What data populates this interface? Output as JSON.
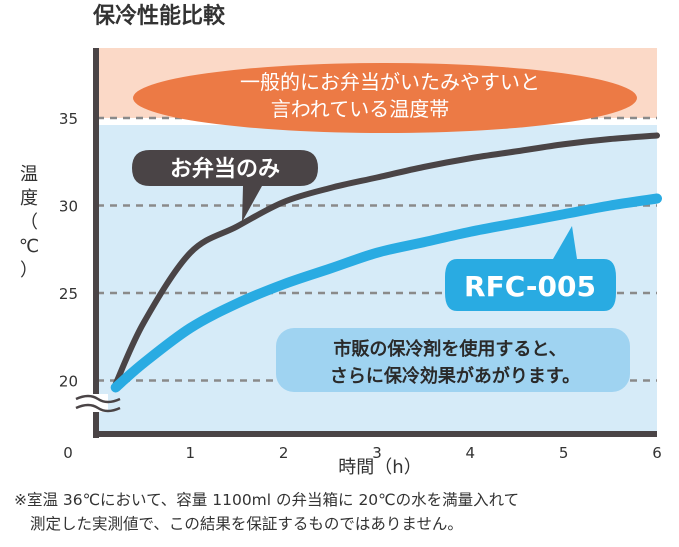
{
  "chart_data": {
    "type": "line",
    "title": "保冷性能比較",
    "xlabel": "時間（h）",
    "ylabel": "温度（℃）",
    "x_ticks": [
      0,
      1,
      2,
      3,
      4,
      5,
      6
    ],
    "y_ticks": [
      20,
      25,
      30,
      35
    ],
    "xlim": [
      0,
      6
    ],
    "ylim": [
      17,
      39
    ],
    "grid": "dashed-horizontal",
    "danger_zone": {
      "from": 35,
      "label_line1": "一般的にお弁当がいたみやすいと",
      "label_line2": "言われている温度帯"
    },
    "series": [
      {
        "name": "お弁当のみ",
        "color": "#4a4446",
        "x": [
          0.2,
          0.5,
          1,
          1.5,
          2,
          2.5,
          3,
          3.5,
          4,
          4.5,
          5,
          5.5,
          6
        ],
        "y": [
          19.8,
          23.3,
          27.3,
          28.8,
          30.2,
          31.0,
          31.6,
          32.2,
          32.7,
          33.1,
          33.5,
          33.8,
          34.0
        ]
      },
      {
        "name": "RFC-005",
        "color": "#29abe2",
        "x": [
          0.2,
          0.5,
          1,
          1.5,
          2,
          2.5,
          3,
          3.5,
          4,
          4.5,
          5,
          5.5,
          6
        ],
        "y": [
          19.6,
          21.0,
          23.0,
          24.4,
          25.5,
          26.4,
          27.3,
          27.9,
          28.5,
          29.0,
          29.5,
          30.0,
          30.4
        ]
      }
    ],
    "annotation": {
      "line1": "市販の保冷剤を使用すると、",
      "line2": "さらに保冷効果があがります。"
    }
  },
  "footnote": {
    "line1": "※室温 36℃において、容量 1100ml の弁当箱に 20℃の水を満量入れて",
    "line2": "測定した実測値で、この結果を保証するものではありません。"
  },
  "colors": {
    "plot_bg": "#d6ebf8",
    "danger_bg": "#fbd9c7",
    "danger_ellipse": "#ec7a45",
    "axis": "#4a4446",
    "annotation_bg": "#9fd3f1"
  }
}
